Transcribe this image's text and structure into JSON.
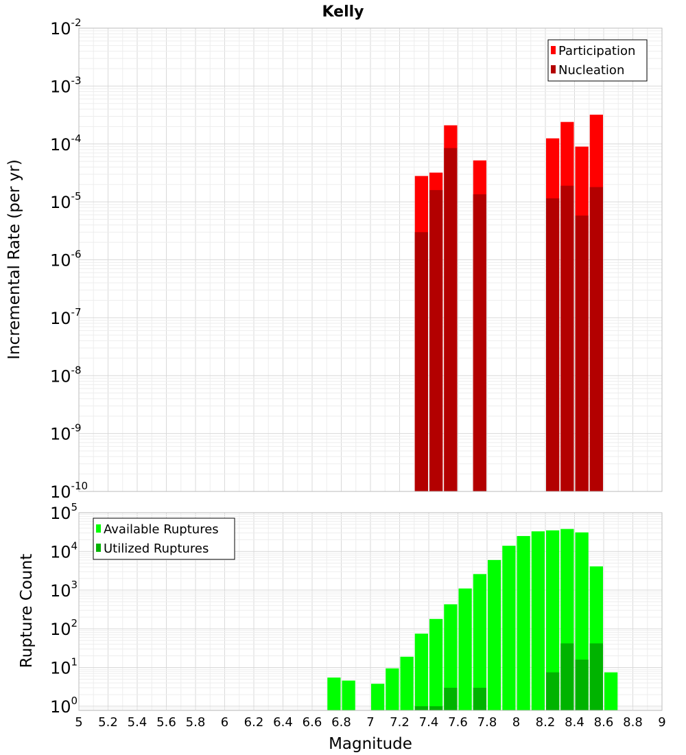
{
  "chart_data": [
    {
      "type": "bar",
      "title": "Kelly",
      "xlabel": "",
      "ylabel": "Incremental Rate (per yr)",
      "xlim": [
        5,
        9
      ],
      "ylim": [
        1e-10,
        0.01
      ],
      "yscale": "log",
      "yticks": [
        {
          "base": "10",
          "exp": "-2"
        },
        {
          "base": "10",
          "exp": "-3"
        },
        {
          "base": "10",
          "exp": "-4"
        },
        {
          "base": "10",
          "exp": "-5"
        },
        {
          "base": "10",
          "exp": "-6"
        },
        {
          "base": "10",
          "exp": "-7"
        },
        {
          "base": "10",
          "exp": "-8"
        },
        {
          "base": "10",
          "exp": "-9"
        },
        {
          "base": "10",
          "exp": "-10"
        }
      ],
      "legend_position": "top-right",
      "series": [
        {
          "name": "Participation",
          "color": "#ff0000",
          "points": [
            {
              "x": 7.35,
              "y": 2.8e-05
            },
            {
              "x": 7.45,
              "y": 3.2e-05
            },
            {
              "x": 7.55,
              "y": 0.00021
            },
            {
              "x": 7.75,
              "y": 5.2e-05
            },
            {
              "x": 8.25,
              "y": 0.000125
            },
            {
              "x": 8.35,
              "y": 0.00024
            },
            {
              "x": 8.45,
              "y": 9e-05
            },
            {
              "x": 8.55,
              "y": 0.00032
            }
          ]
        },
        {
          "name": "Nucleation",
          "color": "#b30000",
          "points": [
            {
              "x": 7.35,
              "y": 3e-06
            },
            {
              "x": 7.45,
              "y": 1.6e-05
            },
            {
              "x": 7.55,
              "y": 8.5e-05
            },
            {
              "x": 7.75,
              "y": 1.35e-05
            },
            {
              "x": 8.25,
              "y": 1.15e-05
            },
            {
              "x": 8.35,
              "y": 1.9e-05
            },
            {
              "x": 8.45,
              "y": 5.8e-06
            },
            {
              "x": 8.55,
              "y": 1.8e-05
            }
          ]
        }
      ]
    },
    {
      "type": "bar",
      "title": "",
      "xlabel": "Magnitude",
      "ylabel": "Rupture Count",
      "xlim": [
        5,
        9
      ],
      "ylim": [
        0.78,
        100000
      ],
      "yscale": "log",
      "xticks": [
        "5",
        "5.2",
        "5.4",
        "5.6",
        "5.8",
        "6",
        "6.2",
        "6.4",
        "6.6",
        "6.8",
        "7",
        "7.2",
        "7.4",
        "7.6",
        "7.8",
        "8",
        "8.2",
        "8.4",
        "8.6",
        "8.8",
        "9"
      ],
      "yticks": [
        {
          "base": "10",
          "exp": "5"
        },
        {
          "base": "10",
          "exp": "4"
        },
        {
          "base": "10",
          "exp": "3"
        },
        {
          "base": "10",
          "exp": "2"
        },
        {
          "base": "10",
          "exp": "1"
        },
        {
          "base": "10",
          "exp": "0"
        }
      ],
      "legend_position": "top-left",
      "series": [
        {
          "name": "Available Ruptures",
          "color": "#00ff00",
          "points": [
            {
              "x": 6.75,
              "y": 5.5
            },
            {
              "x": 6.85,
              "y": 4.6
            },
            {
              "x": 7.05,
              "y": 3.8
            },
            {
              "x": 7.15,
              "y": 9.5
            },
            {
              "x": 7.25,
              "y": 19
            },
            {
              "x": 7.35,
              "y": 75
            },
            {
              "x": 7.45,
              "y": 180
            },
            {
              "x": 7.55,
              "y": 430
            },
            {
              "x": 7.65,
              "y": 1100
            },
            {
              "x": 7.75,
              "y": 2600
            },
            {
              "x": 7.85,
              "y": 6000
            },
            {
              "x": 7.95,
              "y": 14000
            },
            {
              "x": 8.05,
              "y": 25000
            },
            {
              "x": 8.15,
              "y": 33000
            },
            {
              "x": 8.25,
              "y": 35000
            },
            {
              "x": 8.35,
              "y": 38000
            },
            {
              "x": 8.45,
              "y": 31000
            },
            {
              "x": 8.55,
              "y": 4100
            },
            {
              "x": 8.65,
              "y": 7.5
            }
          ]
        },
        {
          "name": "Utilized Ruptures",
          "color": "#00b300",
          "points": [
            {
              "x": 7.35,
              "y": 1
            },
            {
              "x": 7.45,
              "y": 1
            },
            {
              "x": 7.55,
              "y": 3
            },
            {
              "x": 7.75,
              "y": 3
            },
            {
              "x": 8.25,
              "y": 7.5
            },
            {
              "x": 8.35,
              "y": 42
            },
            {
              "x": 8.45,
              "y": 16
            },
            {
              "x": 8.55,
              "y": 42
            }
          ]
        }
      ]
    }
  ]
}
